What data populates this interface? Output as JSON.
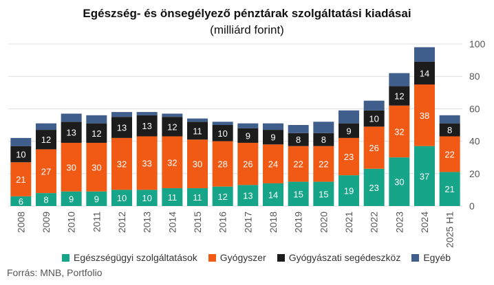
{
  "chart_data": {
    "type": "bar",
    "stacked": true,
    "title": "Egészség- és önsegélyező pénztárak szolgáltatási kiadásai",
    "subtitle": "(milliárd forint)",
    "categories": [
      "2008",
      "2009",
      "2010",
      "2011",
      "2012",
      "2013",
      "2014",
      "2015",
      "2016",
      "2017",
      "2018",
      "2019",
      "2020",
      "2021",
      "2022",
      "2023",
      "2024",
      "2025 H1"
    ],
    "series": [
      {
        "name": "Egészségügyi szolgáltatások",
        "color": "#16a589",
        "values": [
          6,
          8,
          9,
          9,
          10,
          10,
          11,
          11,
          12,
          13,
          14,
          15,
          15,
          19,
          23,
          30,
          37,
          21
        ]
      },
      {
        "name": "Gyógyszer",
        "color": "#f05a14",
        "values": [
          21,
          27,
          30,
          30,
          32,
          33,
          32,
          30,
          28,
          26,
          24,
          22,
          22,
          23,
          26,
          32,
          38,
          22
        ]
      },
      {
        "name": "Gyógyászati segédeszköz",
        "color": "#1c1c1c",
        "values": [
          10,
          12,
          13,
          12,
          13,
          13,
          12,
          11,
          10,
          9,
          9,
          8,
          8,
          9,
          10,
          12,
          14,
          8
        ]
      },
      {
        "name": "Egyéb",
        "color": "#3f5e8c",
        "values": [
          5,
          4,
          5,
          5,
          3,
          2,
          2,
          2,
          2,
          3,
          4,
          5,
          7,
          8,
          6,
          8,
          9,
          5
        ]
      }
    ],
    "y_axis_position": "right",
    "ylim": [
      0,
      100
    ],
    "yticks": [
      0,
      20,
      40,
      60,
      80,
      100
    ],
    "grid": true,
    "legend_position": "bottom",
    "labeled_series": [
      "Egészségügyi szolgáltatások",
      "Gyógyszer",
      "Gyógyászati segédeszköz"
    ]
  },
  "source": "Forrás: MNB, Portfolio"
}
